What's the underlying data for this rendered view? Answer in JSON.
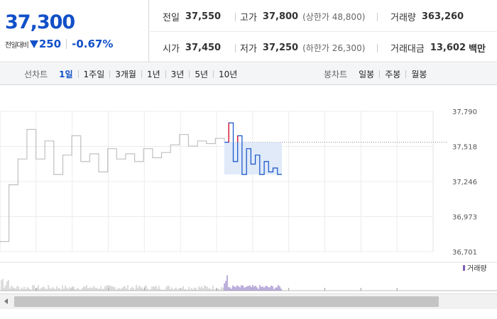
{
  "summary": {
    "price": "37,300",
    "change_label": "전일대비",
    "change_amount": "250",
    "change_rate": "-0.67%"
  },
  "info": {
    "prev_label": "전일",
    "prev_value": "37,550",
    "high_label": "고가",
    "high_value": "37,800",
    "upper_limit": "(상한가 48,800)",
    "volume_label": "거래량",
    "volume_value": "363,260",
    "open_label": "시가",
    "open_value": "37,450",
    "low_label": "저가",
    "low_value": "37,250",
    "lower_limit": "(하한가 26,300)",
    "amount_label": "거래대금",
    "amount_value": "13,602",
    "amount_unit": "백만"
  },
  "tabs": {
    "line_title": "선차트",
    "line_items": [
      "1일",
      "1주일",
      "3개월",
      "1년",
      "3년",
      "5년",
      "10년"
    ],
    "line_active": 0,
    "candle_title": "봉차트",
    "candle_items": [
      "일봉",
      "주봉",
      "월봉"
    ]
  },
  "chart_data": {
    "type": "line",
    "y_ticks": [
      "37,790",
      "37,518",
      "37,246",
      "36,973",
      "36,701"
    ],
    "ylim": [
      36701,
      37790
    ],
    "prev_close_reference": 37550,
    "series": [
      {
        "values": [
          36780,
          37220,
          37420,
          37650,
          37420,
          37560,
          37300,
          37450,
          37600,
          37400,
          37460,
          37320,
          37500,
          37420,
          37460,
          37400,
          37500,
          37430,
          37470,
          37530,
          37610,
          37520,
          37560,
          37540,
          37580,
          37560
        ]
      },
      {
        "values": [
          37550,
          37700,
          37400,
          37600,
          37300,
          37500,
          37380,
          37450,
          37300,
          37400,
          37320,
          37350,
          37300,
          37300
        ]
      }
    ],
    "volume_legend": "거래량",
    "colors": {
      "price_up": "#e0162b",
      "price_down": "#1150c8",
      "previous": "#c0c0c0",
      "volume": "#7b5fb8"
    }
  }
}
